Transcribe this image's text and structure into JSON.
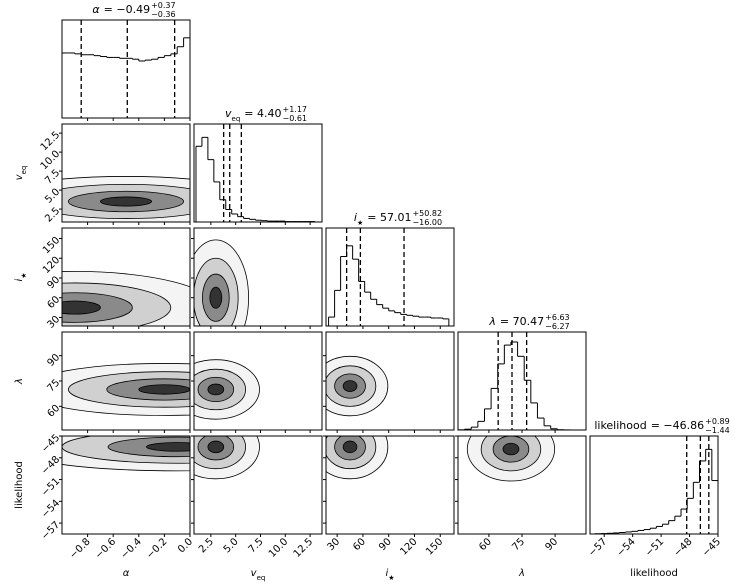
{
  "chart_data": {
    "type": "corner",
    "parameters": [
      {
        "label": {
          "text": "α"
        },
        "lim": [
          -1,
          0
        ],
        "ticks": [
          {
            "value": -0.8,
            "label": "−0.8"
          },
          {
            "value": -0.6,
            "label": "−0.6"
          },
          {
            "value": -0.4,
            "label": "−0.4"
          },
          {
            "value": -0.2,
            "label": "−0.2"
          },
          {
            "value": 0,
            "label": "0.0"
          }
        ],
        "title": {
          "value": "= −0.49",
          "upper": "+0.37",
          "lower": "−0.36"
        },
        "bins": [
          -1,
          -0.95,
          -0.9,
          -0.85,
          -0.8,
          -0.75,
          -0.7,
          -0.65,
          -0.6,
          -0.55,
          -0.5,
          -0.45,
          -0.4,
          -0.35,
          -0.3,
          -0.25,
          -0.2,
          -0.15,
          -0.1,
          -0.05,
          0
        ],
        "counts": [
          0.73,
          0.73,
          0.72,
          0.71,
          0.71,
          0.7,
          0.69,
          0.68,
          0.68,
          0.67,
          0.67,
          0.66,
          0.64,
          0.65,
          0.66,
          0.68,
          0.7,
          0.72,
          0.8,
          0.9
        ],
        "ylim": [
          0,
          1.1
        ],
        "quantiles": [
          -0.85,
          -0.49,
          -0.12
        ],
        "pairs": []
      },
      {
        "label": {
          "text": "v",
          "sub": "eq"
        },
        "lim": [
          0.8,
          13.7
        ],
        "ticks": [
          2.5,
          {
            "value": 5,
            "label": "5.0"
          },
          7.5,
          {
            "value": 10,
            "label": "10.0"
          },
          12.5
        ],
        "title": {
          "value": "= 4.40",
          "upper": "+1.17",
          "lower": "−0.61"
        },
        "bins": [
          1,
          1.6,
          2.2,
          2.8,
          3.4,
          4,
          4.6,
          5.2,
          5.8,
          6.4,
          7,
          7.6,
          8.2,
          8.8,
          9.4,
          10,
          10.6,
          11.2,
          11.8,
          12.4,
          13
        ],
        "counts": [
          0.85,
          0.95,
          0.7,
          0.45,
          0.25,
          0.14,
          0.09,
          0.06,
          0.04,
          0.03,
          0.02,
          0.015,
          0.01,
          0.01,
          0.01,
          0.005,
          0.005,
          0.005,
          0.005,
          0.005
        ],
        "ylim": [
          0,
          1.1
        ],
        "quantiles": [
          3.79,
          4.4,
          5.57
        ],
        "pairs": [
          {
            "peak": [
              -0.5,
              3.5
            ],
            "spread": [
              0.5,
              1.5
            ]
          }
        ]
      },
      {
        "label": {
          "text": "i",
          "sub": "★"
        },
        "lim": [
          17,
          166
        ],
        "ticks": [
          30,
          60,
          90,
          120,
          150
        ],
        "title": {
          "value": "= 57.01",
          "upper": "+50.82",
          "lower": "−16.00"
        },
        "bins": [
          20,
          27,
          34,
          41,
          48,
          55,
          62,
          69,
          76,
          83,
          90,
          97,
          104,
          111,
          118,
          125,
          132,
          139,
          146,
          153,
          160
        ],
        "counts": [
          0.1,
          0.4,
          0.78,
          0.9,
          0.75,
          0.5,
          0.38,
          0.3,
          0.24,
          0.2,
          0.17,
          0.15,
          0.13,
          0.12,
          0.11,
          0.1,
          0.1,
          0.09,
          0.09,
          0.08
        ],
        "ylim": [
          0,
          1.1
        ],
        "quantiles": [
          41.01,
          57.01,
          107.83
        ],
        "pairs": [
          {
            "peak": [
              -0.9,
              45
            ],
            "spread": [
              0.5,
              25
            ]
          },
          {
            "peak": [
              3,
              60
            ],
            "spread": [
              1.5,
              40
            ]
          }
        ]
      },
      {
        "label": {
          "text": "λ"
        },
        "lim": [
          46,
          104
        ],
        "ticks": [
          60,
          75,
          90
        ],
        "title": {
          "value": "= 70.47",
          "upper": "+6.63",
          "lower": "−6.27"
        },
        "bins": [
          46,
          49,
          52,
          55,
          58,
          61,
          64,
          67,
          70,
          73,
          76,
          79,
          82,
          85,
          88,
          91,
          94,
          97,
          100,
          103,
          106
        ],
        "counts": [
          0.002,
          0.009,
          0.032,
          0.097,
          0.237,
          0.467,
          0.742,
          0.953,
          0.988,
          0.827,
          0.558,
          0.304,
          0.134,
          0.047,
          0.014,
          0.003,
          0.001,
          0,
          0,
          0
        ],
        "ylim": [
          0,
          1.1
        ],
        "quantiles": [
          64.2,
          70.47,
          77.1
        ],
        "pairs": [
          {
            "peak": [
              -0.2,
              70
            ],
            "spread": [
              0.5,
              7
            ]
          },
          {
            "peak": [
              3,
              70
            ],
            "spread": [
              2,
              8
            ]
          },
          {
            "peak": [
              45,
              72
            ],
            "spread": [
              20,
              8
            ]
          }
        ]
      },
      {
        "label": {
          "text": "likelihood"
        },
        "lim": [
          -58.5,
          -45
        ],
        "ticks": [
          {
            "value": -57,
            "label": "−57"
          },
          {
            "value": -54,
            "label": "−54"
          },
          {
            "value": -51,
            "label": "−51"
          },
          {
            "value": -48,
            "label": "−48"
          },
          {
            "value": -45,
            "label": "−45"
          }
        ],
        "title": {
          "value": "= −46.86",
          "upper": "+0.89",
          "lower": "−1.44"
        },
        "bins": [
          -58,
          -57.35,
          -56.7,
          -56.05,
          -55.4,
          -54.75,
          -54.1,
          -53.45,
          -52.8,
          -52.15,
          -51.5,
          -50.85,
          -50.2,
          -49.55,
          -48.9,
          -48.25,
          -47.6,
          -46.95,
          -46.3,
          -45.65,
          -45
        ],
        "counts": [
          0.003,
          0.005,
          0.008,
          0.012,
          0.017,
          0.023,
          0.03,
          0.04,
          0.05,
          0.065,
          0.085,
          0.11,
          0.15,
          0.2,
          0.28,
          0.4,
          0.58,
          0.82,
          0.95,
          0.6
        ],
        "ylim": [
          0,
          1.1
        ],
        "quantiles": [
          -48.3,
          -46.86,
          -45.97
        ],
        "pairs": [
          {
            "peak": [
              -0.1,
              -46.5
            ],
            "spread": [
              0.6,
              1.5
            ]
          },
          {
            "peak": [
              3,
              -46.5
            ],
            "spread": [
              2,
              2
            ]
          },
          {
            "peak": [
              45,
              -46.5
            ],
            "spread": [
              20,
              2
            ]
          },
          {
            "peak": [
              70,
              -46.8
            ],
            "spread": [
              9,
              2
            ]
          }
        ]
      }
    ]
  }
}
